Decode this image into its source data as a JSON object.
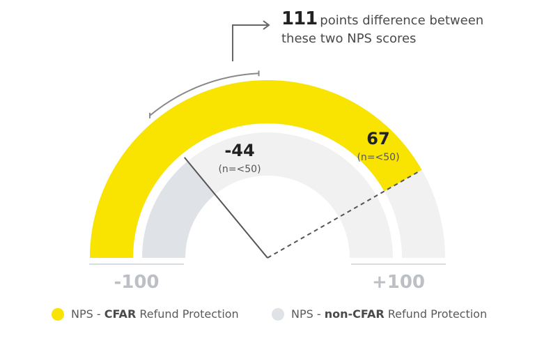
{
  "annotation": {
    "difference": "111",
    "line1": "points difference between",
    "line2": "these two NPS scores"
  },
  "legend": [
    {
      "prefix": "NPS - ",
      "bold": "CFAR",
      "suffix": " Refund Protection",
      "color": "#f9e300"
    },
    {
      "prefix": "NPS - ",
      "bold": "non-CFAR",
      "suffix": " Refund Protection",
      "color": "#dfe2e6"
    }
  ],
  "chart_data": {
    "type": "gauge",
    "min": -100,
    "max": 100,
    "min_label": "-100",
    "max_label": "+100",
    "difference": 111,
    "series": [
      {
        "name": "NPS - CFAR Refund Protection",
        "value": 67,
        "value_label": "67",
        "note": "(n=<50)",
        "color": "#f9e300"
      },
      {
        "name": "NPS - non-CFAR Refund Protection",
        "value": -44,
        "value_label": "-44",
        "note": "(n=<50)",
        "color": "#dfe2e6"
      }
    ],
    "track_color": "#f1f1f1",
    "tick_label_color": "#bcc0c4"
  }
}
